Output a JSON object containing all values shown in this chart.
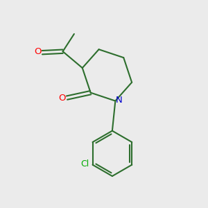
{
  "bg_color": "#ebebeb",
  "bond_color": "#2d6e2d",
  "bond_width": 1.5,
  "atom_colors": {
    "O": "#ff0000",
    "N": "#0000cc",
    "Cl": "#00aa00"
  },
  "font_size_atom": 9.5,
  "font_size_cl": 9.0
}
